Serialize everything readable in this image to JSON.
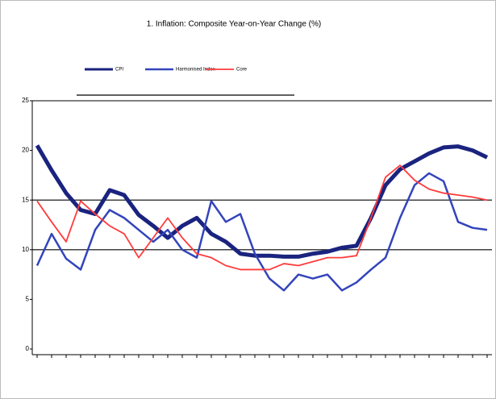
{
  "chart_data": {
    "type": "line",
    "title": "1. Inflation: Composite Year-on-Year Change (%)",
    "categories": [
      null,
      null,
      null,
      null,
      null,
      null,
      null,
      null,
      null,
      null,
      null,
      null,
      null,
      null,
      null,
      null,
      null,
      null,
      null,
      null,
      null,
      null,
      null,
      null,
      null,
      null,
      null,
      null,
      null,
      null,
      null,
      null
    ],
    "series": [
      {
        "name": "CPI",
        "color": "#1a237e",
        "width": 5,
        "values": [
          20.5,
          18.0,
          15.7,
          14.0,
          13.6,
          16.0,
          15.5,
          13.5,
          12.4,
          11.2,
          12.4,
          13.2,
          11.6,
          10.8,
          9.6,
          9.4,
          9.4,
          9.3,
          9.3,
          9.6,
          9.8,
          10.2,
          10.4,
          13.2,
          16.5,
          18.1,
          18.9,
          19.7,
          20.3,
          20.4,
          20.0,
          19.3
        ]
      },
      {
        "name": "Harmonised Index",
        "color": "#3344bb",
        "width": 2.5,
        "values": [
          8.4,
          11.6,
          9.1,
          8.0,
          12.0,
          14.0,
          13.2,
          12.0,
          10.8,
          12.0,
          10.0,
          9.2,
          14.9,
          12.8,
          13.6,
          9.6,
          7.1,
          5.9,
          7.5,
          7.1,
          7.5,
          5.9,
          6.7,
          8.0,
          9.2,
          13.2,
          16.5,
          17.7,
          16.9,
          12.8,
          12.2,
          12.0
        ]
      },
      {
        "name": "Core",
        "color": "#ff3b3b",
        "width": 1.8,
        "values": [
          14.9,
          12.8,
          10.8,
          14.9,
          13.6,
          12.4,
          11.6,
          9.2,
          11.2,
          13.2,
          11.2,
          9.6,
          9.2,
          8.4,
          8.0,
          8.0,
          8.0,
          8.6,
          8.4,
          8.8,
          9.2,
          9.2,
          9.4,
          13.2,
          17.3,
          18.5,
          17.0,
          16.1,
          15.7,
          15.5,
          15.3,
          15.0
        ]
      }
    ],
    "ylim": [
      0,
      25
    ],
    "yticks": [
      25,
      20,
      15,
      10,
      5,
      0
    ],
    "grid_lines": [
      15,
      10
    ]
  }
}
